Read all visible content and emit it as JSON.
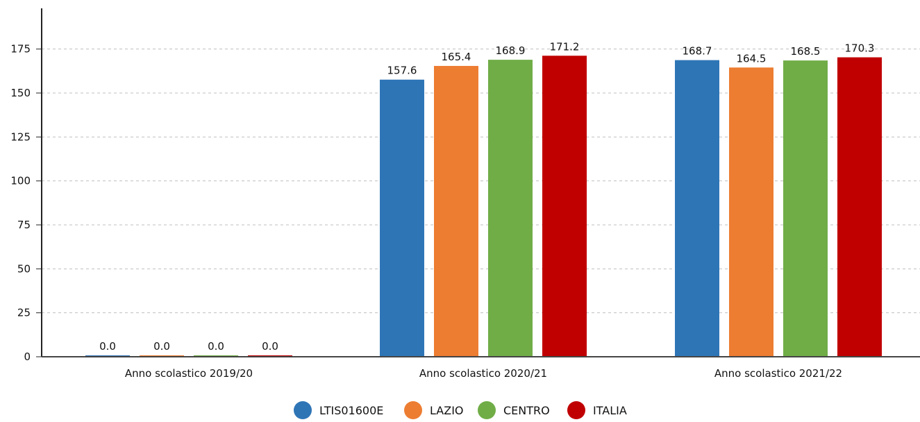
{
  "chart_data": {
    "type": "bar",
    "title": "",
    "xlabel": "",
    "ylabel": "",
    "ylim": [
      0,
      195
    ],
    "yticks": [
      0,
      25,
      50,
      75,
      100,
      125,
      150,
      175
    ],
    "grid": true,
    "legend_position": "bottom-center",
    "categories": [
      "Anno scolastico 2019/20",
      "Anno scolastico 2020/21",
      "Anno scolastico 2021/22"
    ],
    "series": [
      {
        "name": "LTIS01600E",
        "color": "#2e75b6",
        "values": [
          0.0,
          157.6,
          168.7
        ]
      },
      {
        "name": "LAZIO",
        "color": "#ed7d31",
        "values": [
          0.0,
          165.4,
          164.5
        ]
      },
      {
        "name": "CENTRO",
        "color": "#70ad47",
        "values": [
          0.0,
          168.9,
          168.5
        ]
      },
      {
        "name": "ITALIA",
        "color": "#c00000",
        "values": [
          0.0,
          171.2,
          170.3
        ]
      }
    ]
  }
}
